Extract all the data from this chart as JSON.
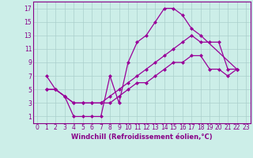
{
  "xlabel": "Windchill (Refroidissement éolien,°C)",
  "xlim": [
    -0.5,
    23.5
  ],
  "ylim": [
    0,
    18
  ],
  "xticks": [
    0,
    1,
    2,
    3,
    4,
    5,
    6,
    7,
    8,
    9,
    10,
    11,
    12,
    13,
    14,
    15,
    16,
    17,
    18,
    19,
    20,
    21,
    22,
    23
  ],
  "yticks": [
    1,
    3,
    5,
    7,
    9,
    11,
    13,
    15,
    17
  ],
  "bg_color": "#cceee8",
  "line_color": "#990099",
  "line1_x": [
    1,
    2,
    3,
    4,
    5,
    6,
    7,
    8,
    9,
    10,
    11,
    12,
    13,
    14,
    15,
    16,
    17,
    18,
    22
  ],
  "line1_y": [
    7,
    5,
    4,
    1,
    1,
    1,
    1,
    7,
    3,
    9,
    12,
    13,
    15,
    17,
    17,
    16,
    14,
    13,
    8
  ],
  "line2_x": [
    1,
    2,
    3,
    4,
    5,
    6,
    7,
    8,
    9,
    10,
    11,
    12,
    13,
    14,
    15,
    16,
    17,
    18,
    19,
    20,
    21,
    22
  ],
  "line2_y": [
    5,
    5,
    4,
    3,
    3,
    3,
    3,
    4,
    5,
    6,
    7,
    8,
    9,
    10,
    11,
    12,
    13,
    12,
    12,
    12,
    8,
    8
  ],
  "line3_x": [
    1,
    2,
    3,
    4,
    5,
    6,
    7,
    8,
    9,
    10,
    11,
    12,
    13,
    14,
    15,
    16,
    17,
    18,
    19,
    20,
    21,
    22
  ],
  "line3_y": [
    5,
    5,
    4,
    3,
    3,
    3,
    3,
    3,
    4,
    5,
    6,
    6,
    7,
    8,
    9,
    9,
    10,
    10,
    8,
    8,
    7,
    8
  ],
  "grid_color": "#aacfcc",
  "marker": "D",
  "markersize": 2.0,
  "linewidth": 0.9,
  "tick_fontsize": 5.5,
  "xlabel_fontsize": 6.0
}
